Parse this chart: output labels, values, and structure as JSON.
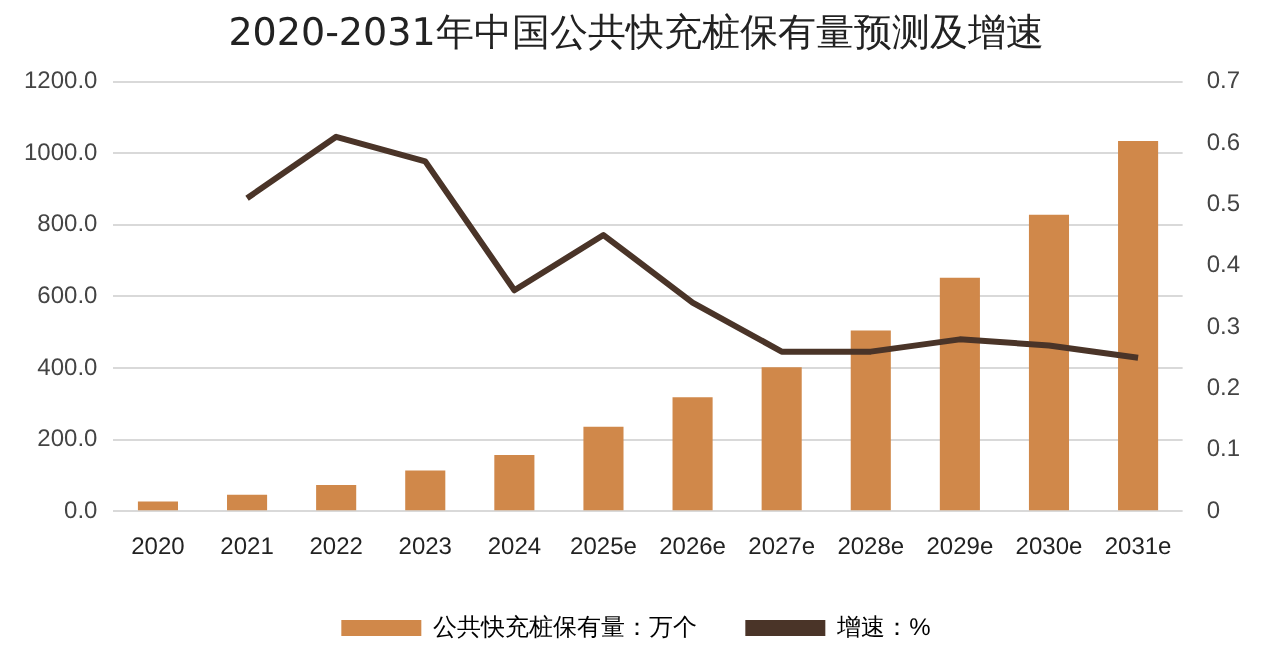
{
  "chart_data": {
    "type": "bar",
    "title": "2020-2031年中国公共快充桩保有量预测及增速",
    "categories": [
      "2020",
      "2021",
      "2022",
      "2023",
      "2024",
      "2025e",
      "2026e",
      "2027e",
      "2028e",
      "2029e",
      "2030e",
      "2031e"
    ],
    "series": [
      {
        "name": "公共快充桩保有量：万个",
        "color": "#d0884a",
        "values": [
          27,
          46,
          73,
          114,
          157,
          236,
          318,
          402,
          505,
          652,
          828,
          1034
        ]
      },
      {
        "name": "增速：%",
        "type": "line",
        "axis": "y2",
        "color": "#4a3428",
        "values": [
          null,
          0.51,
          0.61,
          0.57,
          0.36,
          0.45,
          0.34,
          0.26,
          0.26,
          0.28,
          0.27,
          0.25
        ]
      }
    ],
    "ylim": [
      0,
      1200
    ],
    "yticks": [
      {
        "value": 0,
        "label": "0.0"
      },
      {
        "value": 200,
        "label": "200.0"
      },
      {
        "value": 400,
        "label": "400.0"
      },
      {
        "value": 600,
        "label": "600.0"
      },
      {
        "value": 800,
        "label": "800.0"
      },
      {
        "value": 1000,
        "label": "1000.0"
      },
      {
        "value": 1200,
        "label": "1200.0"
      }
    ],
    "y2lim": [
      0,
      0.7
    ],
    "y2ticks": [
      0,
      0.1,
      0.2,
      0.3,
      0.4,
      0.5,
      0.6,
      0.7
    ],
    "grid": "y",
    "legend": "bottom",
    "marker": "none"
  }
}
